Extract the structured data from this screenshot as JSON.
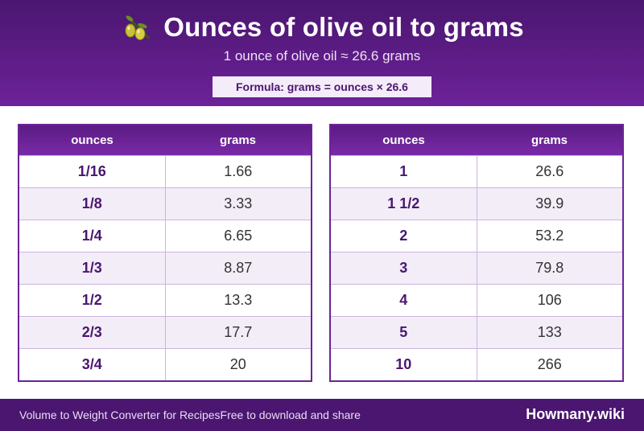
{
  "header": {
    "title": "Ounces of olive oil to grams",
    "icon": "olive-branch-icon",
    "subtitle": "1 ounce of olive oil ≈ 26.6 grams",
    "formula": "Formula: grams = ounces × 26.6"
  },
  "tables": [
    {
      "columns": [
        "ounces",
        "grams"
      ],
      "rows": [
        [
          "1/16",
          "1.66"
        ],
        [
          "1/8",
          "3.33"
        ],
        [
          "1/4",
          "6.65"
        ],
        [
          "1/3",
          "8.87"
        ],
        [
          "1/2",
          "13.3"
        ],
        [
          "2/3",
          "17.7"
        ],
        [
          "3/4",
          "20"
        ]
      ]
    },
    {
      "columns": [
        "ounces",
        "grams"
      ],
      "rows": [
        [
          "1",
          "26.6"
        ],
        [
          "1 1/2",
          "39.9"
        ],
        [
          "2",
          "53.2"
        ],
        [
          "3",
          "79.8"
        ],
        [
          "4",
          "106"
        ],
        [
          "5",
          "133"
        ],
        [
          "10",
          "266"
        ]
      ]
    }
  ],
  "footer": {
    "left": "Volume to Weight Converter for RecipesFree to download and share",
    "brand": "Howmany.wiki"
  },
  "colors": {
    "primary": "#4a1670",
    "accent": "#6d2299",
    "row_alt": "#f3edf8"
  }
}
